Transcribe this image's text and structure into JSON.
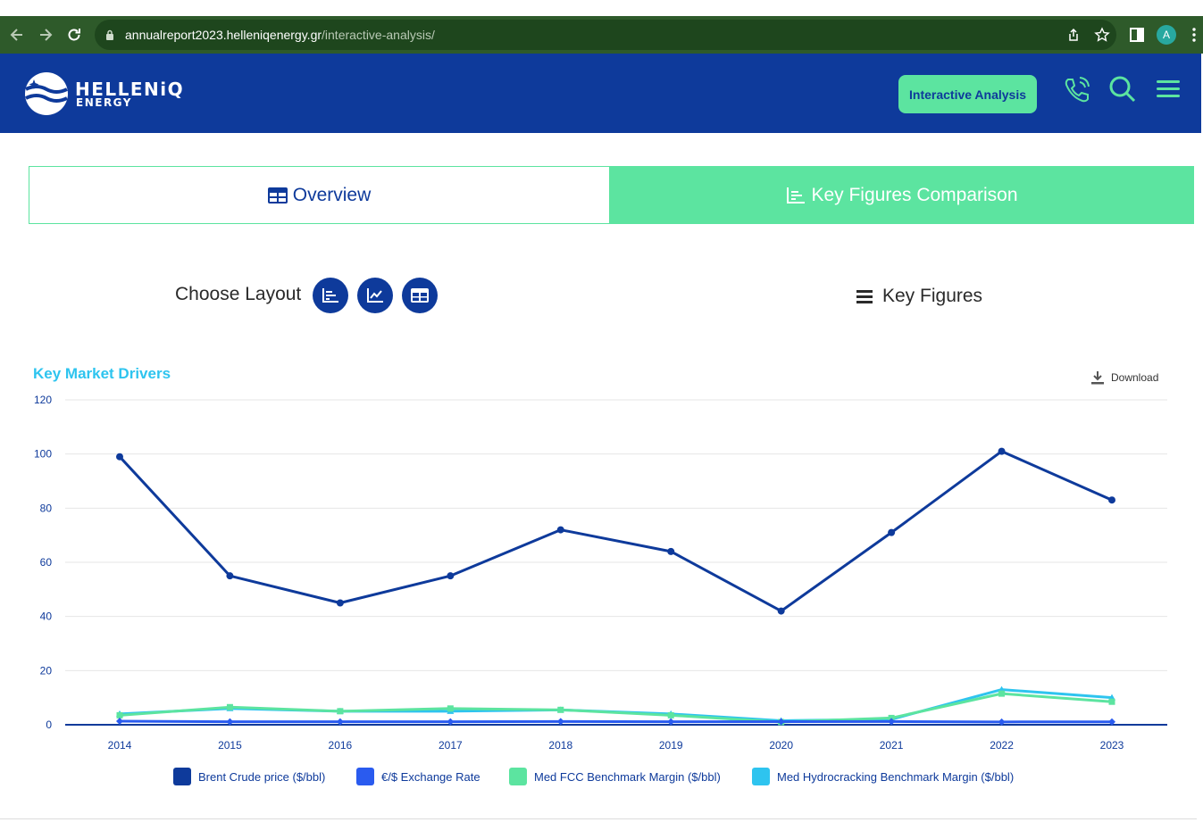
{
  "browser": {
    "url_domain": "annualreport2023.helleniqenergy.gr",
    "url_path": "/interactive-analysis/",
    "avatar_letter": "A"
  },
  "header": {
    "logo_line1": "HELLENiQ",
    "logo_line2": "ENERGY",
    "interactive_analysis_label": "Interactive Analysis"
  },
  "tabs": [
    {
      "label": "Overview",
      "active": false
    },
    {
      "label": "Key Figures Comparison",
      "active": true
    }
  ],
  "controls": {
    "choose_layout_label": "Choose Layout",
    "key_figures_label": "Key Figures"
  },
  "chart_title": "Key Market Drivers",
  "download_label": "Download",
  "colors": {
    "brand_blue": "#0e3a9b",
    "brand_green": "#5ce4a0",
    "title_cyan": "#2ec4ef"
  },
  "chart_data": {
    "type": "line",
    "title": "Key Market Drivers",
    "xlabel": "",
    "ylabel": "",
    "x": [
      "2014",
      "2015",
      "2016",
      "2017",
      "2018",
      "2019",
      "2020",
      "2021",
      "2022",
      "2023"
    ],
    "ylim": [
      0,
      120
    ],
    "yticks": [
      0,
      20,
      40,
      60,
      80,
      100,
      120
    ],
    "grid": true,
    "legend_position": "bottom",
    "series": [
      {
        "name": "Brent Crude price ($/bbl)",
        "color": "#0e3a9b",
        "values": [
          99,
          55,
          45,
          55,
          72,
          64,
          42,
          71,
          101,
          83
        ]
      },
      {
        "name": "€/$ Exchange Rate",
        "color": "#2a5bef",
        "values": [
          1.33,
          1.11,
          1.11,
          1.13,
          1.18,
          1.12,
          1.14,
          1.18,
          1.05,
          1.08
        ]
      },
      {
        "name": "Med FCC Benchmark Margin ($/bbl)",
        "color": "#5ce4a0",
        "values": [
          3.5,
          6.5,
          5.0,
          6.0,
          5.5,
          3.5,
          1.0,
          2.5,
          11.5,
          8.5
        ]
      },
      {
        "name": "Med Hydrocracking Benchmark Margin ($/bbl)",
        "color": "#2ec4ef",
        "values": [
          4.0,
          6.0,
          5.0,
          5.0,
          5.5,
          4.0,
          1.5,
          2.0,
          13.0,
          10.0
        ]
      }
    ]
  }
}
